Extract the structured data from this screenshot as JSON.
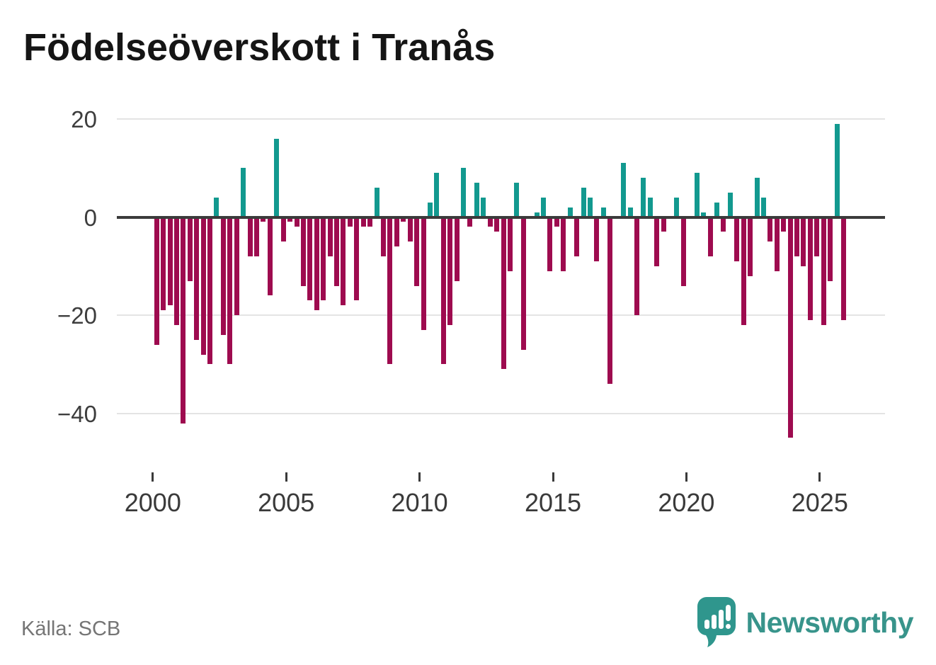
{
  "title": "Födelseöverskott i Tranås",
  "source": "Källa: SCB",
  "logo": {
    "text": "Newsworthy"
  },
  "colors": {
    "positive": "#12998f",
    "negative": "#9e0b4f",
    "zero_line": "#3b3b3b",
    "gridline": "#e4e4e4",
    "axis_text": "#3a3a3a",
    "title_text": "#151515",
    "source_text": "#757575",
    "logo_teal": "#38948b",
    "background": "#ffffff"
  },
  "chart_data": {
    "type": "bar",
    "title": "Födelseöverskott i Tranås",
    "xlabel": "",
    "ylabel": "",
    "period": "quarterly",
    "start_year": 2000,
    "end_year": 2025,
    "grid": "horizontal",
    "legend_position": "none",
    "ylim": [
      -47,
      22
    ],
    "y_ticks": [
      20,
      0,
      -20,
      -40
    ],
    "y_tick_labels": [
      "20",
      "0",
      "−20",
      "−40"
    ],
    "x_tick_years": [
      2000,
      2005,
      2010,
      2015,
      2020,
      2025
    ],
    "x_tick_labels": [
      "2000",
      "2005",
      "2010",
      "2015",
      "2020",
      "2025"
    ],
    "values": [
      -26,
      -19,
      -18,
      -22,
      -42,
      -13,
      -25,
      -28,
      -30,
      4,
      -24,
      -30,
      -20,
      10,
      -8,
      -8,
      -1,
      -16,
      16,
      -5,
      -1,
      -2,
      -14,
      -17,
      -19,
      -17,
      -8,
      -14,
      -18,
      -2,
      -17,
      -2,
      -2,
      6,
      -8,
      -30,
      -6,
      -1,
      -5,
      -14,
      -23,
      3,
      9,
      -30,
      -22,
      -13,
      10,
      -2,
      7,
      4,
      -2,
      -3,
      -31,
      -11,
      7,
      -27,
      0,
      1,
      4,
      -11,
      -2,
      -11,
      2,
      -8,
      6,
      4,
      -9,
      2,
      -34,
      0,
      11,
      2,
      -20,
      8,
      4,
      -10,
      -3,
      0,
      4,
      -14,
      0,
      9,
      1,
      -8,
      3,
      -3,
      5,
      -9,
      -22,
      -12,
      8,
      4,
      -5,
      -11,
      -3,
      -45,
      -8,
      -10,
      -21,
      -8,
      -22,
      -13,
      19,
      -21
    ]
  }
}
